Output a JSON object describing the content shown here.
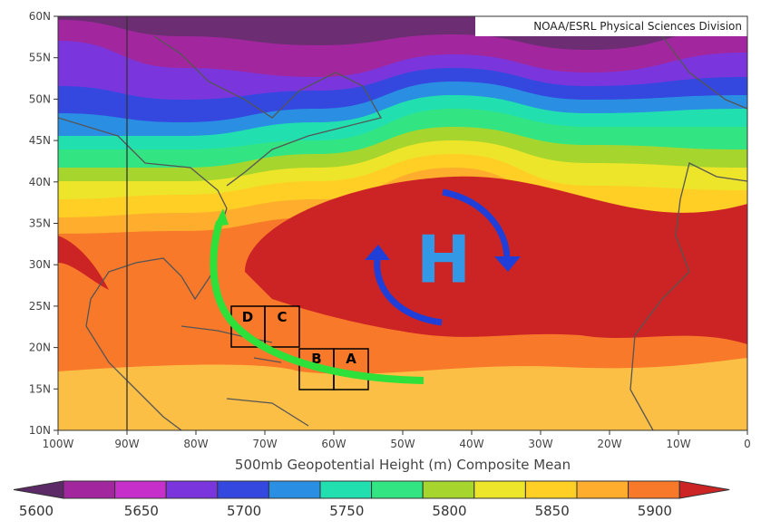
{
  "map": {
    "credit": "NOAA/ESRL Physical Sciences Division",
    "x_axis_title": "500mb Geopotential Height (m) Composite Mean",
    "x_ticks": [
      "100W",
      "90W",
      "80W",
      "70W",
      "60W",
      "50W",
      "40W",
      "30W",
      "20W",
      "10W",
      "0"
    ],
    "y_ticks": [
      "10N",
      "15N",
      "20N",
      "25N",
      "30N",
      "35N",
      "40N",
      "45N",
      "50N",
      "55N",
      "60N"
    ],
    "high_label": "H",
    "boxes": [
      "D",
      "C",
      "B",
      "A"
    ],
    "colorbar": {
      "labels": [
        "5600",
        "5650",
        "5700",
        "5750",
        "5800",
        "5850",
        "5900"
      ],
      "colors": [
        "#5c2a66",
        "#a2279f",
        "#c62fc9",
        "#7a36dc",
        "#3448e0",
        "#2a8fe3",
        "#22dfb0",
        "#33e582",
        "#a6d62e",
        "#ece52a",
        "#ffcf26",
        "#ffad2c",
        "#f9792a",
        "#cc2424"
      ]
    }
  }
}
